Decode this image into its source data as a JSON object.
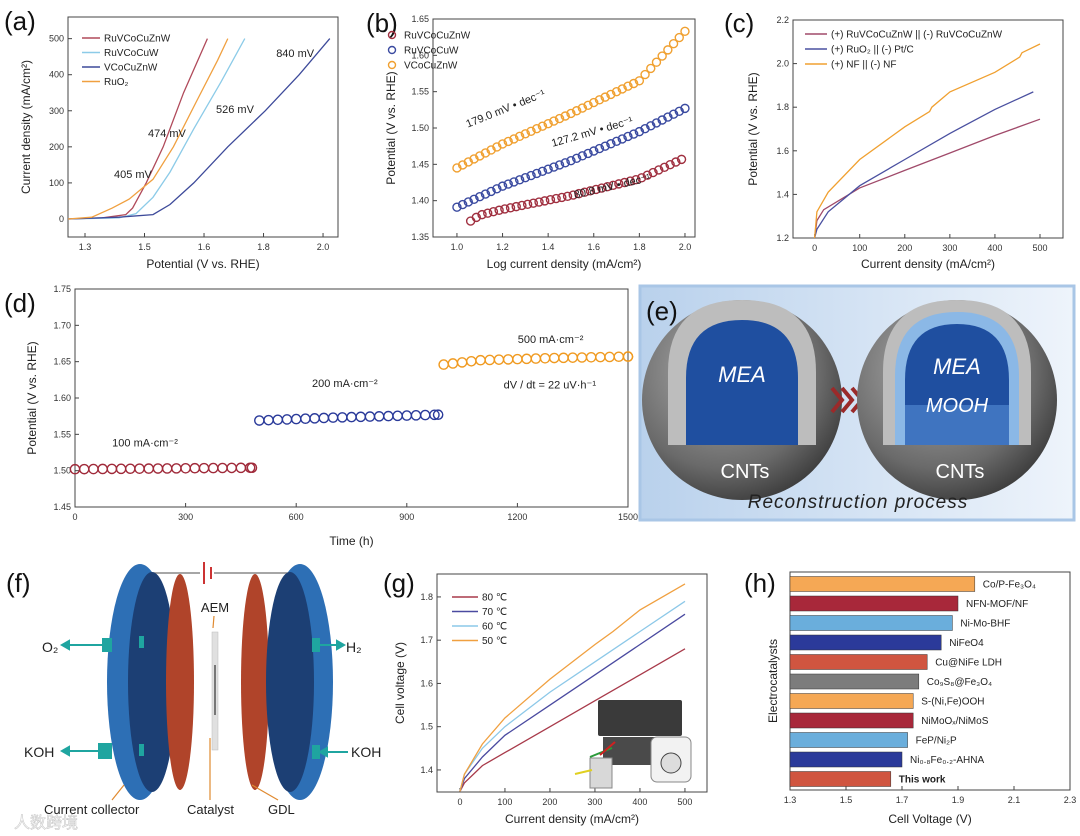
{
  "panel_labels": {
    "a": "(a)",
    "b": "(b)",
    "c": "(c)",
    "d": "(d)",
    "e": "(e)",
    "f": "(f)",
    "g": "(g)",
    "h": "(h)"
  },
  "chart_data": [
    {
      "panel": "a",
      "type": "line",
      "xlabel": "Potential (V vs. RHE)",
      "ylabel": "Current density (mA/cm²)",
      "xlim": [
        1.25,
        2.044
      ],
      "ylim": [
        -50,
        560
      ],
      "xticks": [
        1.3,
        1.475,
        1.65,
        1.825,
        2.0
      ],
      "xtick_labels": [
        "1.3",
        "1.5",
        "1.6",
        "1.8",
        "2.0"
      ],
      "yticks": [
        0,
        100,
        200,
        300,
        400,
        500
      ],
      "ytick_labels": [
        "0",
        "100",
        "200",
        "300",
        "400",
        "500"
      ],
      "legend": "top-left",
      "series": [
        {
          "name": "RuVCoCuZnW",
          "color": "#b04a5a",
          "points": [
            [
              1.25,
              0
            ],
            [
              1.35,
              3
            ],
            [
              1.42,
              12
            ],
            [
              1.44,
              30
            ],
            [
              1.48,
              100
            ],
            [
              1.53,
              200
            ],
            [
              1.59,
              350
            ],
            [
              1.66,
              500
            ]
          ]
        },
        {
          "name": "RuVCoCuW",
          "color": "#8ccbe8",
          "points": [
            [
              1.25,
              0
            ],
            [
              1.4,
              3
            ],
            [
              1.45,
              15
            ],
            [
              1.5,
              60
            ],
            [
              1.55,
              130
            ],
            [
              1.62,
              250
            ],
            [
              1.7,
              380
            ],
            [
              1.77,
              500
            ]
          ]
        },
        {
          "name": "VCoCuZnW",
          "color": "#3d4a9a",
          "points": [
            [
              1.25,
              0
            ],
            [
              1.4,
              5
            ],
            [
              1.5,
              12
            ],
            [
              1.55,
              40
            ],
            [
              1.62,
              100
            ],
            [
              1.72,
              200
            ],
            [
              1.83,
              300
            ],
            [
              1.93,
              400
            ],
            [
              2.02,
              500
            ]
          ]
        },
        {
          "name": "RuO₂",
          "color": "#f0a040",
          "points": [
            [
              1.25,
              0
            ],
            [
              1.32,
              5
            ],
            [
              1.38,
              30
            ],
            [
              1.43,
              55
            ],
            [
              1.5,
              110
            ],
            [
              1.56,
              200
            ],
            [
              1.63,
              330
            ],
            [
              1.69,
              440
            ],
            [
              1.72,
              500
            ]
          ]
        }
      ],
      "annotations": [
        {
          "text": "405 mV",
          "x": 1.441,
          "y": 114
        },
        {
          "text": "474 mV",
          "x": 1.541,
          "y": 227
        },
        {
          "text": "526 mV",
          "x": 1.741,
          "y": 294
        },
        {
          "text": "840 mV",
          "x": 1.918,
          "y": 449
        }
      ]
    },
    {
      "panel": "b",
      "type": "scatter",
      "xlabel": "Log current density (mA/cm²)",
      "ylabel": "Potential (V vs. RHE)",
      "xlim": [
        0.895,
        2.044
      ],
      "ylim": [
        1.35,
        1.65
      ],
      "xticks": [
        1.0,
        1.2,
        1.4,
        1.6,
        1.8,
        2.0
      ],
      "xtick_labels": [
        "1.0",
        "1.2",
        "1.4",
        "1.6",
        "1.8",
        "2.0"
      ],
      "yticks": [
        1.35,
        1.4,
        1.45,
        1.5,
        1.55,
        1.6,
        1.65
      ],
      "ytick_labels": [
        "1.35",
        "1.40",
        "1.45",
        "1.50",
        "1.55",
        "1.60",
        "1.65"
      ],
      "legend": "top-left",
      "marker_step": 0.025,
      "series": [
        {
          "name": "RuVCoCuZnW",
          "color": "#a03040",
          "points": [
            [
              1.06,
              1.372
            ],
            [
              1.1,
              1.38
            ],
            [
              1.2,
              1.388
            ],
            [
              1.5,
              1.407
            ],
            [
              1.8,
              1.43
            ],
            [
              2.0,
              1.459
            ]
          ]
        },
        {
          "name": "RuVCoCuW",
          "color": "#3a4aa0",
          "points": [
            [
              1.0,
              1.391
            ],
            [
              1.2,
              1.42
            ],
            [
              1.5,
              1.455
            ],
            [
              1.8,
              1.495
            ],
            [
              2.0,
              1.527
            ]
          ]
        },
        {
          "name": "VCoCuZnW",
          "color": "#f0a030",
          "points": [
            [
              1.0,
              1.445
            ],
            [
              1.2,
              1.478
            ],
            [
              1.5,
              1.52
            ],
            [
              1.8,
              1.565
            ],
            [
              2.0,
              1.633
            ]
          ]
        }
      ],
      "annotations": [
        {
          "text": "179.0 mV • dec⁻¹",
          "x": 1.219,
          "y": 1.522,
          "color": "#f0a030"
        },
        {
          "text": "127.2 mV • dec⁻¹",
          "x": 1.597,
          "y": 1.49,
          "color": "#3a4aa0"
        },
        {
          "text": "80.8 mV • dec⁻¹",
          "x": 1.684,
          "y": 1.415,
          "color": "#a03040"
        }
      ]
    },
    {
      "panel": "c",
      "type": "line",
      "xlabel": "Current density (mA/cm²)",
      "ylabel": "Potential (V vs. RHE)",
      "xlim": [
        -48,
        551
      ],
      "ylim": [
        1.2,
        2.2
      ],
      "xticks": [
        0,
        100,
        200,
        300,
        400,
        500
      ],
      "xtick_labels": [
        "0",
        "100",
        "200",
        "300",
        "400",
        "500"
      ],
      "yticks": [
        1.2,
        1.4,
        1.6,
        1.8,
        2.0,
        2.2
      ],
      "ytick_labels": [
        "1.2",
        "1.4",
        "1.6",
        "1.8",
        "2.0",
        "2.2"
      ],
      "legend": "top-left",
      "series": [
        {
          "name": "(+) RuVCoCuZnW || (-) RuVCoCuZnW",
          "color": "#a04a6a",
          "points": [
            [
              0,
              1.2
            ],
            [
              5,
              1.28
            ],
            [
              20,
              1.33
            ],
            [
              100,
              1.43
            ],
            [
              200,
              1.51
            ],
            [
              300,
              1.59
            ],
            [
              400,
              1.67
            ],
            [
              500,
              1.745
            ]
          ]
        },
        {
          "name": "(+) RuO₂ || (-) Pt/C",
          "color": "#4a50a0",
          "points": [
            [
              0,
              1.2
            ],
            [
              5,
              1.24
            ],
            [
              30,
              1.32
            ],
            [
              100,
              1.44
            ],
            [
              200,
              1.56
            ],
            [
              300,
              1.68
            ],
            [
              400,
              1.79
            ],
            [
              485,
              1.87
            ]
          ]
        },
        {
          "name": "(+) NF || (-) NF",
          "color": "#f0a030",
          "points": [
            [
              0,
              1.2
            ],
            [
              5,
              1.32
            ],
            [
              30,
              1.41
            ],
            [
              100,
              1.56
            ],
            [
              200,
              1.71
            ],
            [
              255,
              1.78
            ],
            [
              260,
              1.8
            ],
            [
              300,
              1.87
            ],
            [
              400,
              1.96
            ],
            [
              455,
              2.03
            ],
            [
              460,
              2.05
            ],
            [
              500,
              2.09
            ]
          ]
        }
      ]
    },
    {
      "panel": "d",
      "type": "scatter",
      "xlabel": "Time (h)",
      "ylabel": "Potential (V vs. RHE)",
      "xlim": [
        0,
        1500
      ],
      "ylim": [
        1.45,
        1.75
      ],
      "xticks": [
        0,
        300,
        600,
        900,
        1200,
        1500
      ],
      "xtick_labels": [
        "0",
        "300",
        "600",
        "900",
        "1200",
        "1500"
      ],
      "yticks": [
        1.45,
        1.5,
        1.55,
        1.6,
        1.65,
        1.7,
        1.75
      ],
      "ytick_labels": [
        "1.45",
        "1.50",
        "1.55",
        "1.60",
        "1.65",
        "1.70",
        "1.75"
      ],
      "marker_step": 25,
      "series": [
        {
          "name": "100 mA·cm⁻²",
          "color": "#a02a3a",
          "points": [
            [
              0,
              1.502
            ],
            [
              480,
              1.504
            ]
          ]
        },
        {
          "name": "200 mA·cm⁻²",
          "color": "#2a3a9a",
          "points": [
            [
              500,
              1.569
            ],
            [
              700,
              1.573
            ],
            [
              985,
              1.577
            ]
          ]
        },
        {
          "name": "500 mA·cm⁻²",
          "color": "#f09a20",
          "points": [
            [
              1000,
              1.646
            ],
            [
              1100,
              1.652
            ],
            [
              1300,
              1.655
            ],
            [
              1500,
              1.657
            ]
          ]
        }
      ],
      "annotations": [
        {
          "text": "100 mA·cm⁻²",
          "x": 190,
          "y": 1.533
        },
        {
          "text": "200 mA·cm⁻²",
          "x": 732,
          "y": 1.615
        },
        {
          "text": "500 mA·cm⁻²",
          "x": 1290,
          "y": 1.676
        },
        {
          "text": "dV / dt = 22 uV·h⁻¹",
          "x": 1288,
          "y": 1.613
        }
      ]
    },
    {
      "panel": "g",
      "type": "line",
      "xlabel": "Current density (mA/cm²)",
      "ylabel": "Cell voltage (V)",
      "xlim": [
        -51,
        549
      ],
      "ylim": [
        1.349,
        1.853
      ],
      "xticks": [
        0,
        100,
        200,
        300,
        400,
        500
      ],
      "xtick_labels": [
        "0",
        "100",
        "200",
        "300",
        "400",
        "500"
      ],
      "yticks": [
        1.4,
        1.5,
        1.6,
        1.7,
        1.8
      ],
      "ytick_labels": [
        "1.4",
        "1.5",
        "1.6",
        "1.7",
        "1.8"
      ],
      "legend": "top-left",
      "series": [
        {
          "name": "80 ℃",
          "color": "#a83a4a",
          "points": [
            [
              0,
              1.35
            ],
            [
              10,
              1.37
            ],
            [
              50,
              1.41
            ],
            [
              100,
              1.44
            ],
            [
              200,
              1.5
            ],
            [
              300,
              1.56
            ],
            [
              400,
              1.62
            ],
            [
              500,
              1.68
            ]
          ]
        },
        {
          "name": "70 ℃",
          "color": "#4a4aa0",
          "points": [
            [
              0,
              1.35
            ],
            [
              10,
              1.38
            ],
            [
              50,
              1.43
            ],
            [
              100,
              1.48
            ],
            [
              200,
              1.55
            ],
            [
              300,
              1.62
            ],
            [
              400,
              1.69
            ],
            [
              500,
              1.76
            ]
          ]
        },
        {
          "name": "60 ℃",
          "color": "#8cc8e8",
          "points": [
            [
              0,
              1.35
            ],
            [
              10,
              1.39
            ],
            [
              50,
              1.45
            ],
            [
              100,
              1.5
            ],
            [
              200,
              1.58
            ],
            [
              300,
              1.65
            ],
            [
              400,
              1.72
            ],
            [
              500,
              1.79
            ]
          ]
        },
        {
          "name": "50 ℃",
          "color": "#f0a040",
          "points": [
            [
              0,
              1.35
            ],
            [
              10,
              1.39
            ],
            [
              50,
              1.46
            ],
            [
              100,
              1.52
            ],
            [
              200,
              1.61
            ],
            [
              300,
              1.69
            ],
            [
              340,
              1.72
            ],
            [
              400,
              1.77
            ],
            [
              500,
              1.83
            ]
          ]
        }
      ]
    },
    {
      "panel": "h",
      "type": "bar",
      "orientation": "horizontal",
      "xlabel": "Cell Voltage (V)",
      "ylabel": "Electrocatalysts",
      "xlim": [
        1.3,
        2.3
      ],
      "xticks": [
        1.3,
        1.5,
        1.7,
        1.9,
        2.1,
        2.3
      ],
      "xtick_labels": [
        "1.3",
        "1.5",
        "1.7",
        "1.9",
        "2.1",
        "2.3"
      ],
      "categories": [
        "Co/P-Fe₃O₄",
        "NFN-MOF/NF",
        "Ni-Mo-BHF",
        "NiFeO4",
        "Cu@NiFe LDH",
        "Co₉S₈@Fe₃O₄",
        "S-(Ni,Fe)OOH",
        "NiMoOₓ/NiMoS",
        "FeP/Ni₂P",
        "Ni₀.₈Fe₀.₂-AHNA",
        "This work"
      ],
      "values": [
        1.96,
        1.9,
        1.88,
        1.84,
        1.79,
        1.76,
        1.74,
        1.74,
        1.72,
        1.7,
        1.66
      ],
      "colors": [
        "#f5a855",
        "#a8283a",
        "#6aaedc",
        "#2b3a9a",
        "#d05540",
        "#7c7c7c",
        "#f5a855",
        "#a8283a",
        "#6aaedc",
        "#2b3a9a",
        "#d05540"
      ],
      "highlight_color": "#c8202a"
    }
  ],
  "diagram_e": {
    "mea_left": "MEA",
    "cnts_left": "CNTs",
    "mea_right": "MEA",
    "mooh": "MOOH",
    "cnts_right": "CNTs",
    "caption": "Reconstruction process"
  },
  "diagram_f": {
    "aem": "AEM",
    "o2": "O₂",
    "h2": "H₂",
    "koh_left": "KOH",
    "koh_right": "KOH",
    "current_collector": "Current collector",
    "catalyst": "Catalyst",
    "gdl": "GDL"
  },
  "watermark": "人数跨境"
}
